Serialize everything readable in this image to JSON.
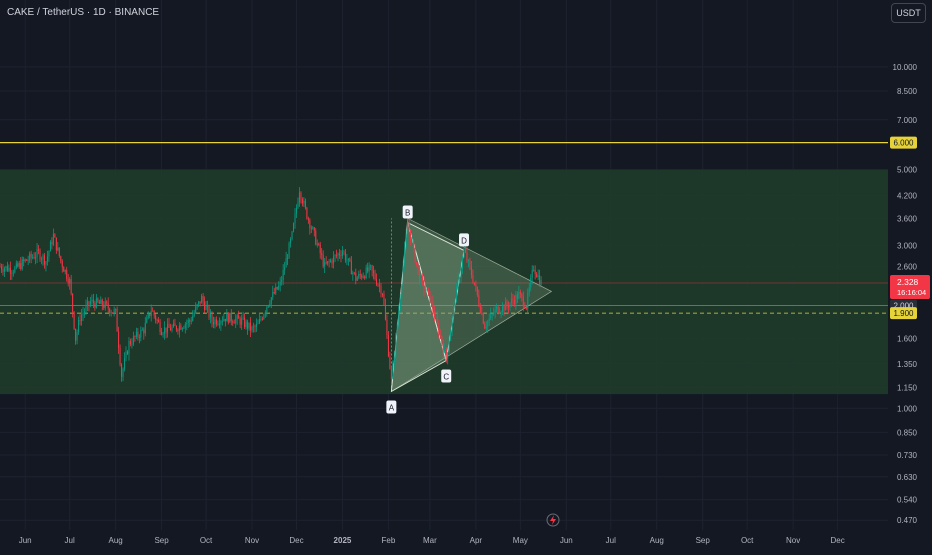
{
  "header": {
    "symbol_title": "CAKE / TetherUS · 1D · BINANCE",
    "currency_button": "USDT"
  },
  "colors": {
    "background": "#141823",
    "grid": "#1e2230",
    "axis_text": "#b2b5be",
    "up_candle": "#089981",
    "down_candle": "#f23645",
    "zone_fill": "#1f3d2a",
    "resistance_line": "#e6d33a",
    "support_line": "#e6d33a",
    "pattern_fill": "#8aa88a",
    "price_badge": "#f23645"
  },
  "chart_data": {
    "type": "candlestick",
    "title": "CAKE / TetherUS · 1D · BINANCE",
    "y_scale": "log",
    "ylim": [
      0.44,
      13.0
    ],
    "y_ticks": [
      "10.000",
      "8.500",
      "7.000",
      "5.000",
      "4.200",
      "3.600",
      "3.000",
      "2.600",
      "1.600",
      "1.350",
      "1.150",
      "1.000",
      "0.850",
      "0.730",
      "0.630",
      "0.540",
      "0.470"
    ],
    "x_ticks": [
      "Jun",
      "Jul",
      "Aug",
      "Sep",
      "Oct",
      "Nov",
      "Dec",
      "2025",
      "Feb",
      "Mar",
      "Apr",
      "May",
      "Jun",
      "Jul",
      "Aug",
      "Sep",
      "Oct",
      "Nov",
      "Dec"
    ],
    "x_start": "2024-05-15",
    "x_end": "2026-01-04",
    "price_path": [
      [
        "2024-05-15",
        2.6
      ],
      [
        "2024-05-25",
        2.55
      ],
      [
        "2024-06-01",
        2.7
      ],
      [
        "2024-06-10",
        2.85
      ],
      [
        "2024-06-15",
        2.7
      ],
      [
        "2024-06-20",
        3.2
      ],
      [
        "2024-06-25",
        2.7
      ],
      [
        "2024-07-01",
        2.35
      ],
      [
        "2024-07-05",
        1.6
      ],
      [
        "2024-07-08",
        1.85
      ],
      [
        "2024-07-15",
        2.05
      ],
      [
        "2024-07-25",
        2.0
      ],
      [
        "2024-08-01",
        1.9
      ],
      [
        "2024-08-05",
        1.25
      ],
      [
        "2024-08-10",
        1.55
      ],
      [
        "2024-08-20",
        1.7
      ],
      [
        "2024-08-25",
        1.95
      ],
      [
        "2024-09-01",
        1.7
      ],
      [
        "2024-09-10",
        1.72
      ],
      [
        "2024-09-20",
        1.8
      ],
      [
        "2024-09-28",
        2.1
      ],
      [
        "2024-10-05",
        1.8
      ],
      [
        "2024-10-15",
        1.85
      ],
      [
        "2024-10-25",
        1.8
      ],
      [
        "2024-11-01",
        1.7
      ],
      [
        "2024-11-05",
        1.75
      ],
      [
        "2024-11-12",
        2.05
      ],
      [
        "2024-11-20",
        2.3
      ],
      [
        "2024-11-28",
        3.2
      ],
      [
        "2024-12-03",
        4.4
      ],
      [
        "2024-12-07",
        3.8
      ],
      [
        "2024-12-12",
        3.3
      ],
      [
        "2024-12-20",
        2.6
      ],
      [
        "2024-12-28",
        2.8
      ],
      [
        "2025-01-01",
        2.9
      ],
      [
        "2025-01-10",
        2.4
      ],
      [
        "2025-01-20",
        2.55
      ],
      [
        "2025-01-28",
        2.2
      ],
      [
        "2025-02-03",
        1.2
      ],
      [
        "2025-02-06",
        1.6
      ],
      [
        "2025-02-14",
        3.5
      ],
      [
        "2025-02-22",
        2.4
      ],
      [
        "2025-03-01",
        2.1
      ],
      [
        "2025-03-12",
        1.4
      ],
      [
        "2025-03-18",
        2.1
      ],
      [
        "2025-03-24",
        2.9
      ],
      [
        "2025-03-30",
        2.4
      ],
      [
        "2025-04-07",
        1.75
      ],
      [
        "2025-04-15",
        1.95
      ],
      [
        "2025-04-22",
        2.0
      ],
      [
        "2025-04-30",
        2.15
      ],
      [
        "2025-05-05",
        2.0
      ],
      [
        "2025-05-10",
        2.6
      ],
      [
        "2025-05-15",
        2.33
      ]
    ],
    "current_price": {
      "value": "2.328",
      "countdown": "16:16:04"
    },
    "horizontal_levels": [
      {
        "price": 6.0,
        "label": "6.000",
        "style": "solid"
      },
      {
        "price": 2.0,
        "label": "2.000",
        "style": "solid"
      },
      {
        "price": 1.9,
        "label": "1.900",
        "style": "dashed"
      }
    ],
    "zone": {
      "top": 5.0,
      "bottom": 1.1
    },
    "pattern_points": [
      {
        "label": "A",
        "date": "2025-02-03",
        "price": 1.12
      },
      {
        "label": "B",
        "date": "2025-02-14",
        "price": 3.5
      },
      {
        "label": "C",
        "date": "2025-03-12",
        "price": 1.38
      },
      {
        "label": "D",
        "date": "2025-03-24",
        "price": 2.9
      }
    ],
    "triangle_apex": {
      "date": "2025-05-22",
      "price": 2.2
    },
    "grid": true,
    "legend": "none"
  }
}
